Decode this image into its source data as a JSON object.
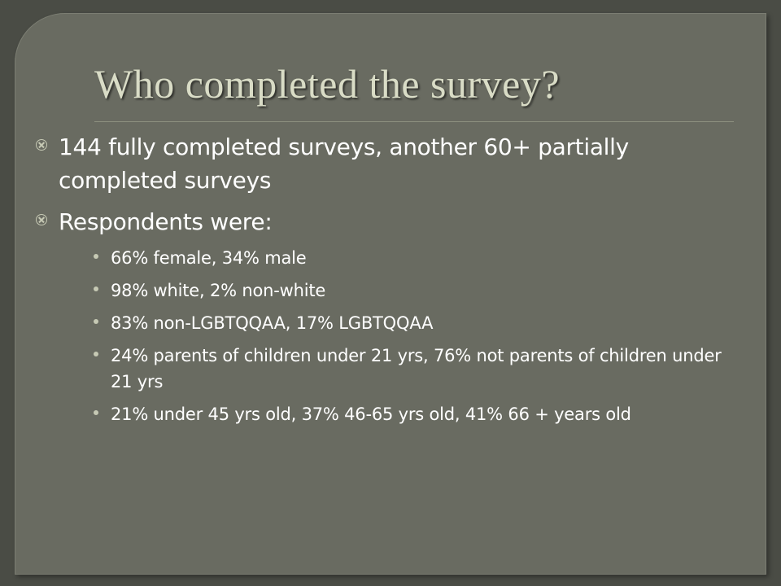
{
  "slide": {
    "title": "Who completed the survey?",
    "bullets": [
      {
        "text": "144 fully completed surveys, another 60+ partially completed surveys"
      },
      {
        "text": "Respondents were:"
      }
    ],
    "sub_bullets": [
      {
        "text": "66% female, 34% male"
      },
      {
        "text": "98% white, 2% non-white"
      },
      {
        "text": "83% non-LGBTQQAA, 17% LGBTQQAA"
      },
      {
        "text": "24% parents of children under 21 yrs, 76% not parents of children under 21 yrs"
      },
      {
        "text": "21% under 45 yrs old, 37% 46-65 yrs old, 41%  66 + years old"
      }
    ]
  },
  "colors": {
    "background": "#4a4c45",
    "panel": "#696b61",
    "title": "#d9dcc6",
    "body_text": "#ffffff",
    "marker": "#c6c9b4"
  },
  "icons": {
    "level1_marker": "circled-x-icon",
    "level2_marker": "dot-icon"
  }
}
